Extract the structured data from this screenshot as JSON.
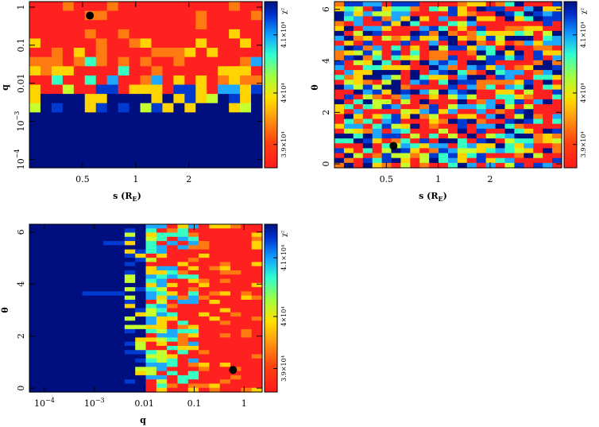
{
  "chart_data": [
    {
      "type": "heatmap",
      "xlabel": "s (R",
      "xlabel_sub": "E",
      "xlabel_close": ")",
      "ylabel": "q",
      "x_axis": {
        "scale": "log",
        "range": [
          0.25,
          5.2
        ],
        "ticks": [
          {
            "value": 0.5,
            "label": "0.5"
          },
          {
            "value": 1,
            "label": "1"
          },
          {
            "value": 2,
            "label": "2"
          }
        ]
      },
      "y_axis": {
        "scale": "log",
        "range": [
          6e-05,
          1.4
        ],
        "ticks": [
          {
            "value": 1,
            "label": "1",
            "sup": ""
          },
          {
            "value": 0.1,
            "label": "0.1",
            "sup": ""
          },
          {
            "value": 0.01,
            "label": "0.01",
            "sup": ""
          },
          {
            "value": 0.001,
            "label": "10",
            "sup": "−3"
          },
          {
            "value": 0.0001,
            "label": "10",
            "sup": "−4"
          }
        ]
      },
      "best_fit": {
        "s": 0.55,
        "q": 0.6
      },
      "colorbar": {
        "label": "χ²",
        "ticks": [
          {
            "frac": 0.14,
            "label": "3.9×10⁴"
          },
          {
            "frac": 0.45,
            "label": "4×10⁴"
          },
          {
            "frac": 0.8,
            "label": "4.1×10⁴"
          }
        ]
      }
    },
    {
      "type": "heatmap",
      "xlabel": "s (R",
      "xlabel_sub": "E",
      "xlabel_close": ")",
      "ylabel": "θ",
      "x_axis": {
        "scale": "log",
        "range": [
          0.25,
          5.2
        ],
        "ticks": [
          {
            "value": 0.5,
            "label": "0.5"
          },
          {
            "value": 1,
            "label": "1"
          },
          {
            "value": 2,
            "label": "2"
          }
        ]
      },
      "y_axis": {
        "scale": "linear",
        "range": [
          -0.15,
          6.3
        ],
        "ticks": [
          {
            "value": 0,
            "label": "0"
          },
          {
            "value": 2,
            "label": "2"
          },
          {
            "value": 4,
            "label": "4"
          },
          {
            "value": 6,
            "label": "6"
          }
        ]
      },
      "best_fit": {
        "s": 0.55,
        "theta": 0.7
      },
      "colorbar": {
        "label": "χ²",
        "ticks": [
          {
            "frac": 0.14,
            "label": "3.9×10⁴"
          },
          {
            "frac": 0.45,
            "label": "4×10⁴"
          },
          {
            "frac": 0.8,
            "label": "4.1×10⁴"
          }
        ]
      }
    },
    {
      "type": "heatmap",
      "xlabel": "q",
      "ylabel": "θ",
      "x_axis": {
        "scale": "log",
        "range": [
          5e-05,
          2.3
        ],
        "ticks": [
          {
            "value": 0.0001,
            "label": "10",
            "sup": "−4"
          },
          {
            "value": 0.001,
            "label": "10",
            "sup": "−3"
          },
          {
            "value": 0.01,
            "label": "0.01",
            "sup": ""
          },
          {
            "value": 0.1,
            "label": "0.1",
            "sup": ""
          },
          {
            "value": 1,
            "label": "1",
            "sup": ""
          }
        ]
      },
      "y_axis": {
        "scale": "linear",
        "range": [
          -0.15,
          6.3
        ],
        "ticks": [
          {
            "value": 0,
            "label": "0"
          },
          {
            "value": 2,
            "label": "2"
          },
          {
            "value": 4,
            "label": "4"
          },
          {
            "value": 6,
            "label": "6"
          }
        ]
      },
      "best_fit": {
        "q": 0.6,
        "theta": 0.7
      },
      "colorbar": {
        "label": "χ²",
        "ticks": [
          {
            "frac": 0.14,
            "label": "3.9×10⁴"
          },
          {
            "frac": 0.45,
            "label": "4×10⁴"
          },
          {
            "frac": 0.8,
            "label": "4.1×10⁴"
          }
        ]
      }
    }
  ],
  "colormap": [
    "#ff2020",
    "#ff7a10",
    "#ffd400",
    "#c6ff2e",
    "#36ffc4",
    "#1fa8ff",
    "#003bd1",
    "#000f80"
  ]
}
